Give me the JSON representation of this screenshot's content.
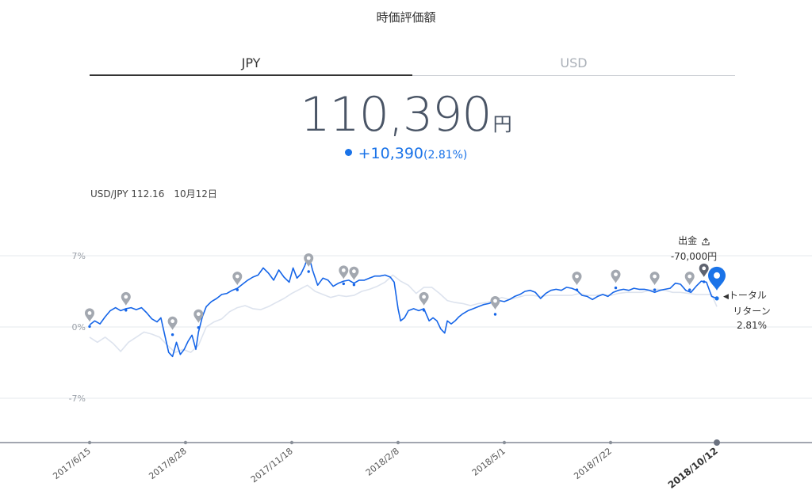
{
  "title": "時価評価額",
  "tabs": [
    {
      "label": "JPY",
      "active": true
    },
    {
      "label": "USD",
      "active": false
    }
  ],
  "value": {
    "amount": "110,390",
    "unit": "円"
  },
  "change": {
    "amount": "+10,390",
    "percent": "(2.81%)"
  },
  "fx": {
    "label": "USD/JPY 112.16",
    "date": "10月12日"
  },
  "withdrawal": {
    "label": "出金",
    "icon": "upload-icon",
    "amount": "-70,000円"
  },
  "total_return": {
    "line1": "トータル",
    "line2": "リターン",
    "value": "2.81%"
  },
  "chart_data": {
    "type": "line",
    "ylim": [
      -12,
      10
    ],
    "yticks": [
      {
        "value": 7,
        "label": "7%"
      },
      {
        "value": 0,
        "label": "0%"
      },
      {
        "value": -7,
        "label": "-7%"
      }
    ],
    "xlim": [
      0,
      484
    ],
    "xticks": [
      {
        "day": 0,
        "label": "2017/6/15",
        "emphasis": false
      },
      {
        "day": 74,
        "label": "2017/8/28",
        "emphasis": false
      },
      {
        "day": 156,
        "label": "2017/11/18",
        "emphasis": false
      },
      {
        "day": 238,
        "label": "2018/2/8",
        "emphasis": false
      },
      {
        "day": 320,
        "label": "2018/5/1",
        "emphasis": false
      },
      {
        "day": 402,
        "label": "2018/7/22",
        "emphasis": false
      },
      {
        "day": 484,
        "label": "2018/10/12",
        "emphasis": true
      }
    ],
    "colors": {
      "primary": "#1565e8",
      "secondary": "#dde3ee",
      "marker": "#a3a8b0",
      "marker_dark": "#5f6470",
      "current": "#1a73e8"
    },
    "series": [
      {
        "values": [
          [
            0,
            0.2
          ],
          [
            4,
            0.6
          ],
          [
            8,
            0.3
          ],
          [
            12,
            1.0
          ],
          [
            16,
            1.6
          ],
          [
            20,
            1.9
          ],
          [
            24,
            1.6
          ],
          [
            28,
            1.8
          ],
          [
            32,
            1.9
          ],
          [
            36,
            1.7
          ],
          [
            40,
            1.9
          ],
          [
            44,
            1.4
          ],
          [
            48,
            0.8
          ],
          [
            52,
            0.5
          ],
          [
            55,
            0.9
          ],
          [
            58,
            -0.8
          ],
          [
            61,
            -2.5
          ],
          [
            64,
            -2.9
          ],
          [
            67,
            -1.5
          ],
          [
            70,
            -2.7
          ],
          [
            73,
            -2.2
          ],
          [
            76,
            -1.4
          ],
          [
            79,
            -0.8
          ],
          [
            82,
            -2.2
          ],
          [
            84,
            -0.5
          ],
          [
            87,
            1.0
          ],
          [
            90,
            2.0
          ],
          [
            94,
            2.5
          ],
          [
            98,
            2.8
          ],
          [
            102,
            3.2
          ],
          [
            106,
            3.3
          ],
          [
            110,
            3.6
          ],
          [
            114,
            3.8
          ],
          [
            118,
            4.2
          ],
          [
            122,
            4.6
          ],
          [
            126,
            4.9
          ],
          [
            130,
            5.1
          ],
          [
            134,
            5.8
          ],
          [
            138,
            5.3
          ],
          [
            142,
            4.6
          ],
          [
            146,
            5.6
          ],
          [
            150,
            4.9
          ],
          [
            154,
            4.4
          ],
          [
            157,
            5.8
          ],
          [
            160,
            4.8
          ],
          [
            163,
            5.2
          ],
          [
            166,
            6.0
          ],
          [
            169,
            7.1
          ],
          [
            172,
            5.6
          ],
          [
            176,
            4.1
          ],
          [
            180,
            4.8
          ],
          [
            184,
            4.6
          ],
          [
            188,
            4.0
          ],
          [
            192,
            4.3
          ],
          [
            196,
            4.5
          ],
          [
            200,
            4.6
          ],
          [
            204,
            4.3
          ],
          [
            208,
            4.6
          ],
          [
            212,
            4.6
          ],
          [
            216,
            4.8
          ],
          [
            220,
            5.0
          ],
          [
            224,
            5.0
          ],
          [
            228,
            5.1
          ],
          [
            232,
            4.9
          ],
          [
            235,
            4.4
          ],
          [
            238,
            1.8
          ],
          [
            240,
            0.6
          ],
          [
            243,
            0.9
          ],
          [
            246,
            1.6
          ],
          [
            250,
            1.8
          ],
          [
            254,
            1.6
          ],
          [
            258,
            1.8
          ],
          [
            262,
            0.6
          ],
          [
            265,
            0.9
          ],
          [
            268,
            0.6
          ],
          [
            271,
            -0.2
          ],
          [
            274,
            -0.6
          ],
          [
            276,
            0.6
          ],
          [
            279,
            0.3
          ],
          [
            282,
            0.6
          ],
          [
            285,
            1.0
          ],
          [
            288,
            1.3
          ],
          [
            292,
            1.6
          ],
          [
            296,
            1.8
          ],
          [
            300,
            2.0
          ],
          [
            304,
            2.2
          ],
          [
            308,
            2.3
          ],
          [
            312,
            2.5
          ],
          [
            316,
            2.6
          ],
          [
            320,
            2.5
          ],
          [
            324,
            2.7
          ],
          [
            328,
            3.0
          ],
          [
            332,
            3.2
          ],
          [
            336,
            3.5
          ],
          [
            340,
            3.6
          ],
          [
            344,
            3.4
          ],
          [
            348,
            2.8
          ],
          [
            352,
            3.3
          ],
          [
            356,
            3.6
          ],
          [
            360,
            3.7
          ],
          [
            364,
            3.6
          ],
          [
            368,
            3.9
          ],
          [
            372,
            3.8
          ],
          [
            376,
            3.6
          ],
          [
            380,
            3.1
          ],
          [
            384,
            3.0
          ],
          [
            388,
            2.7
          ],
          [
            392,
            3.0
          ],
          [
            396,
            3.2
          ],
          [
            400,
            3.0
          ],
          [
            404,
            3.4
          ],
          [
            408,
            3.6
          ],
          [
            412,
            3.7
          ],
          [
            416,
            3.6
          ],
          [
            420,
            3.8
          ],
          [
            424,
            3.7
          ],
          [
            428,
            3.7
          ],
          [
            432,
            3.6
          ],
          [
            436,
            3.4
          ],
          [
            440,
            3.6
          ],
          [
            444,
            3.7
          ],
          [
            448,
            3.8
          ],
          [
            452,
            4.3
          ],
          [
            456,
            4.2
          ],
          [
            460,
            3.6
          ],
          [
            464,
            3.4
          ],
          [
            468,
            4.0
          ],
          [
            472,
            4.5
          ],
          [
            476,
            4.4
          ],
          [
            480,
            3.0
          ],
          [
            484,
            2.81
          ]
        ]
      },
      {
        "values": [
          [
            0,
            -1.0
          ],
          [
            6,
            -1.5
          ],
          [
            12,
            -1.0
          ],
          [
            18,
            -1.6
          ],
          [
            24,
            -2.4
          ],
          [
            30,
            -1.5
          ],
          [
            36,
            -1.0
          ],
          [
            42,
            -0.5
          ],
          [
            48,
            -0.7
          ],
          [
            54,
            -1.0
          ],
          [
            60,
            -1.8
          ],
          [
            66,
            -2.5
          ],
          [
            72,
            -2.2
          ],
          [
            78,
            -2.5
          ],
          [
            84,
            -1.8
          ],
          [
            90,
            0.0
          ],
          [
            96,
            0.5
          ],
          [
            102,
            0.8
          ],
          [
            108,
            1.5
          ],
          [
            114,
            1.9
          ],
          [
            120,
            2.1
          ],
          [
            126,
            1.8
          ],
          [
            132,
            1.7
          ],
          [
            138,
            2.0
          ],
          [
            144,
            2.4
          ],
          [
            150,
            2.8
          ],
          [
            156,
            3.3
          ],
          [
            162,
            3.7
          ],
          [
            168,
            4.1
          ],
          [
            174,
            3.5
          ],
          [
            180,
            3.2
          ],
          [
            186,
            2.9
          ],
          [
            192,
            3.1
          ],
          [
            198,
            3.0
          ],
          [
            204,
            3.1
          ],
          [
            210,
            3.5
          ],
          [
            216,
            3.7
          ],
          [
            222,
            4.0
          ],
          [
            228,
            4.4
          ],
          [
            234,
            5.1
          ],
          [
            240,
            4.5
          ],
          [
            246,
            4.1
          ],
          [
            252,
            3.3
          ],
          [
            258,
            3.9
          ],
          [
            264,
            3.9
          ],
          [
            270,
            3.3
          ],
          [
            276,
            2.6
          ],
          [
            282,
            2.4
          ],
          [
            288,
            2.3
          ],
          [
            294,
            2.1
          ],
          [
            300,
            2.3
          ],
          [
            306,
            2.4
          ],
          [
            312,
            2.6
          ],
          [
            318,
            2.9
          ],
          [
            324,
            2.7
          ],
          [
            330,
            2.9
          ],
          [
            336,
            3.1
          ],
          [
            342,
            3.1
          ],
          [
            348,
            3.0
          ],
          [
            354,
            3.1
          ],
          [
            360,
            3.1
          ],
          [
            366,
            3.1
          ],
          [
            372,
            3.1
          ],
          [
            378,
            3.3
          ],
          [
            384,
            3.1
          ],
          [
            390,
            3.1
          ],
          [
            396,
            3.2
          ],
          [
            402,
            3.1
          ],
          [
            408,
            3.3
          ],
          [
            414,
            3.4
          ],
          [
            420,
            3.4
          ],
          [
            426,
            3.4
          ],
          [
            432,
            3.6
          ],
          [
            438,
            3.7
          ],
          [
            444,
            3.6
          ],
          [
            450,
            3.4
          ],
          [
            456,
            3.4
          ],
          [
            462,
            3.3
          ],
          [
            468,
            3.2
          ],
          [
            474,
            3.2
          ],
          [
            480,
            3.2
          ],
          [
            484,
            2.0
          ]
        ]
      }
    ],
    "markers": [
      {
        "day": 0,
        "y": 0.2,
        "variant": "light"
      },
      {
        "day": 28,
        "y": 1.8,
        "variant": "light"
      },
      {
        "day": 64,
        "y": -0.6,
        "variant": "light"
      },
      {
        "day": 84,
        "y": 0.1,
        "variant": "light"
      },
      {
        "day": 114,
        "y": 3.8,
        "variant": "light"
      },
      {
        "day": 169,
        "y": 5.6,
        "variant": "light"
      },
      {
        "day": 196,
        "y": 4.4,
        "variant": "light"
      },
      {
        "day": 204,
        "y": 4.3,
        "variant": "light"
      },
      {
        "day": 258,
        "y": 1.8,
        "variant": "light"
      },
      {
        "day": 313,
        "y": 1.4,
        "variant": "light"
      },
      {
        "day": 376,
        "y": 3.8,
        "variant": "light"
      },
      {
        "day": 406,
        "y": 4.0,
        "variant": "light"
      },
      {
        "day": 436,
        "y": 3.8,
        "variant": "light"
      },
      {
        "day": 463,
        "y": 3.8,
        "variant": "light"
      },
      {
        "day": 474,
        "y": 4.6,
        "variant": "dark"
      }
    ],
    "current": {
      "day": 484,
      "y": 2.81
    }
  }
}
